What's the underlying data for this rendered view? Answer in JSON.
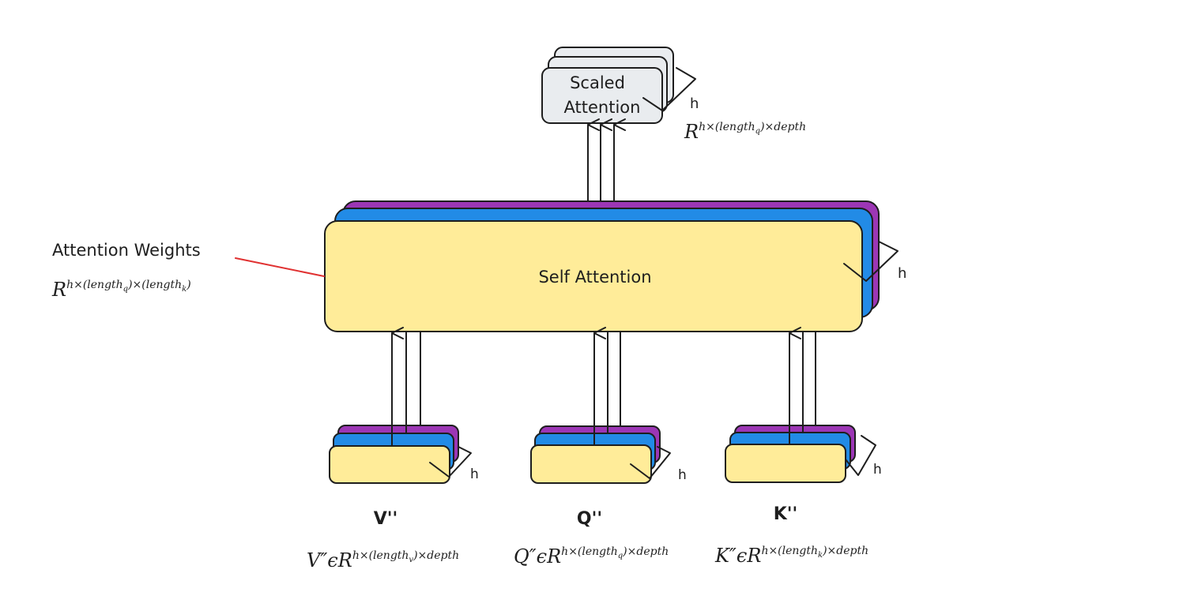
{
  "colors": {
    "yellow": "#ffec99",
    "blue": "#228be6",
    "purple": "#9c36b5",
    "gray": "#e9ecef",
    "stroke": "#1e1e1e",
    "pointer": "#e03131"
  },
  "output": {
    "label_line1": "Scaled",
    "label_line2": "Attention",
    "h_label": "h",
    "shape": {
      "base": "R",
      "sup": "h×(length",
      "sub": "q",
      "tail": ")×depth"
    }
  },
  "self_attention": {
    "label": "Self Attention",
    "h_label": "h"
  },
  "attention_weights": {
    "label": "Attention Weights",
    "shape": {
      "base": "R",
      "sup": "h×(length",
      "sub1": "q",
      "mid": ")×(length",
      "sub2": "k",
      "tail": ")"
    }
  },
  "inputs": [
    {
      "name": "V''",
      "h_label": "h",
      "shape": {
        "lhs": "V″",
        "in": "ϵ",
        "base": "R",
        "sup": "h×(length",
        "sub": "v",
        "tail": ")×depth"
      }
    },
    {
      "name": "Q''",
      "h_label": "h",
      "shape": {
        "lhs": "Q″",
        "in": "ϵ",
        "base": "R",
        "sup": "h×(length",
        "sub": "q",
        "tail": ")×depth"
      }
    },
    {
      "name": "K''",
      "h_label": "h",
      "shape": {
        "lhs": "K″",
        "in": "ϵ",
        "base": "R",
        "sup": "h×(length",
        "sub": "k",
        "tail": ")×depth"
      }
    }
  ]
}
